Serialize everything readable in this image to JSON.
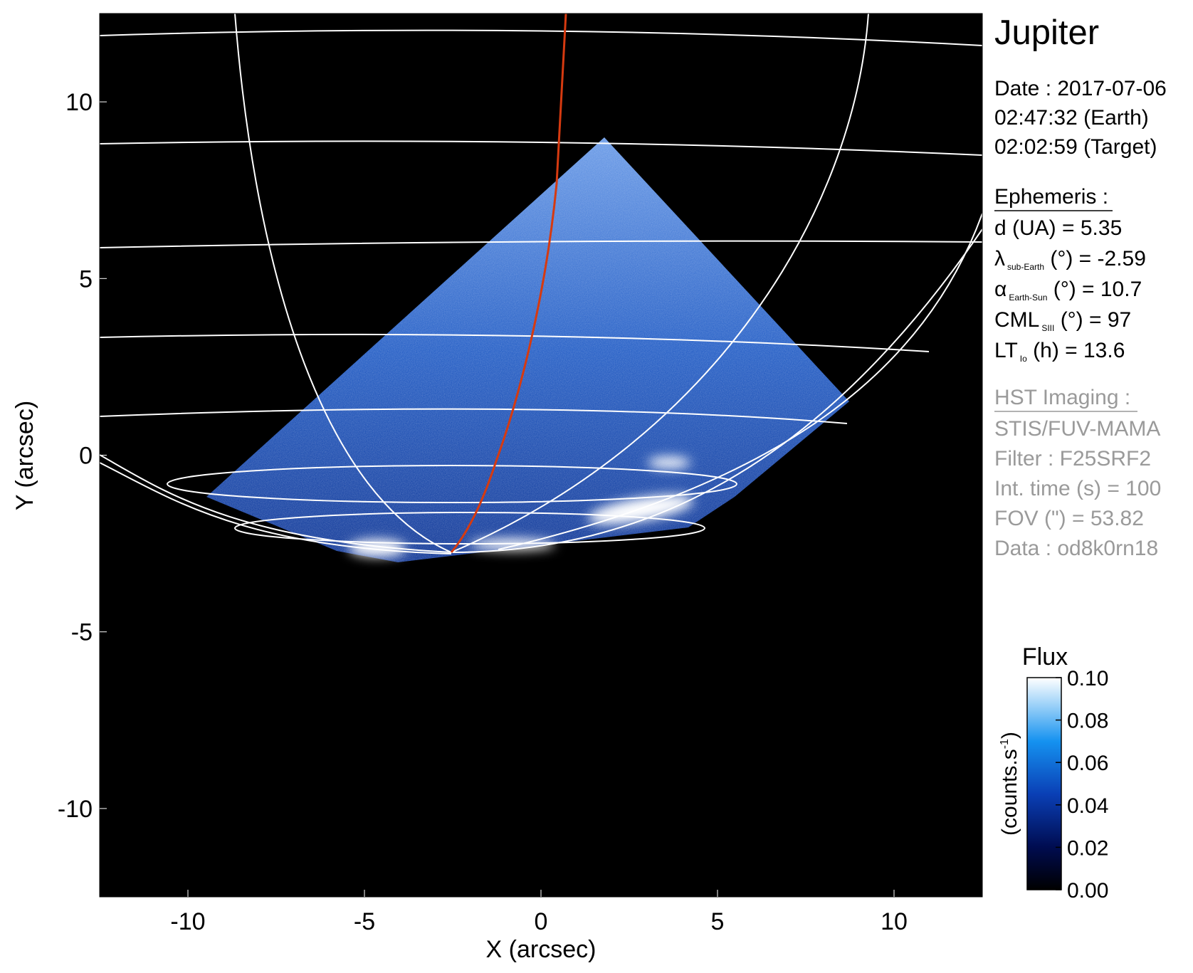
{
  "chart_data": {
    "type": "image",
    "title": "Jupiter",
    "xlabel": "X (arcsec)",
    "ylabel": "Y (arcsec)",
    "xlim": [
      -12.5,
      12.5
    ],
    "ylim": [
      -12.5,
      12.5
    ],
    "xticks": [
      -10,
      -5,
      0,
      5,
      10
    ],
    "yticks": [
      -10,
      -5,
      0,
      5,
      10
    ],
    "colorbar": {
      "label": "Flux",
      "unit_parts": [
        "(counts.s",
        "-1",
        ")"
      ],
      "clim": [
        0,
        0.1
      ],
      "ticks": [
        {
          "value": 0,
          "label": "0.00"
        },
        {
          "value": 0.02,
          "label": "0.02"
        },
        {
          "value": 0.04,
          "label": "0.04"
        },
        {
          "value": 0.06,
          "label": "0.06"
        },
        {
          "value": 0.08,
          "label": "0.08"
        },
        {
          "value": 0.1,
          "label": "0.10"
        }
      ]
    },
    "observation": {
      "date_lines": [
        "Date : 2017-07-06",
        "02:47:32 (Earth)",
        "02:02:59 (Target)"
      ],
      "ephemeris_heading": "Ephemeris :",
      "ephemeris": [
        {
          "symbol": "d (UA)    = 5.35"
        },
        {
          "symbol": "λ",
          "sub": "sub-Earth",
          "rest": " (°) = -2.59"
        },
        {
          "symbol": "α",
          "sub": "Earth-Sun",
          "rest": " (°) = 10.7"
        },
        {
          "symbol": "CML",
          "sub": "SIII",
          "rest": " (°) = 97"
        },
        {
          "symbol": "LT",
          "sub": "Io",
          "rest": " (h) = 13.6"
        }
      ],
      "hst_heading": "HST Imaging :",
      "hst_lines": [
        "STIS/FUV-MAMA",
        "Filter : F25SRF2",
        "Int. time (s) = 100",
        "FOV (\") = 53.82",
        "Data : od8k0rn18"
      ]
    }
  }
}
